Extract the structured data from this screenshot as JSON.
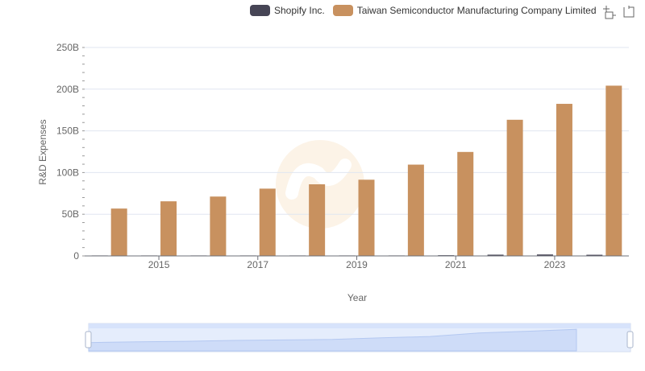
{
  "legend": {
    "items": [
      {
        "label": "Shopify Inc.",
        "color": "#464555"
      },
      {
        "label": "Taiwan Semiconductor Manufacturing Company Limited",
        "color": "#c8915f"
      }
    ]
  },
  "toolbox": {
    "icons": [
      "zoom-icon",
      "restore-icon"
    ]
  },
  "chart_data": {
    "type": "bar",
    "xlabel": "Year",
    "ylabel": "R&D Expenses",
    "ylim": [
      0,
      250000000000
    ],
    "ytick_labels": [
      "0",
      "50B",
      "100B",
      "150B",
      "200B",
      "250B"
    ],
    "categories": [
      "2014",
      "2015",
      "2016",
      "2017",
      "2018",
      "2019",
      "2020",
      "2021",
      "2022",
      "2023",
      "2024"
    ],
    "xtick_labels": [
      "2015",
      "2017",
      "2019",
      "2021",
      "2023"
    ],
    "grid": true,
    "legend_position": "top-right",
    "series": [
      {
        "name": "Shopify Inc.",
        "color": "#464555",
        "values": [
          20000000.0,
          30000000.0,
          80000000.0,
          150000000.0,
          230000000.0,
          330000000.0,
          550000000.0,
          850000000.0,
          1490000000.0,
          1730000000.0,
          1380000000.0
        ]
      },
      {
        "name": "Taiwan Semiconductor Manufacturing Company Limited",
        "color": "#c8915f",
        "values": [
          56800000000.0,
          65500000000.0,
          71200000000.0,
          80700000000.0,
          85900000000.0,
          91400000000.0,
          109500000000.0,
          124700000000.0,
          163300000000.0,
          182400000000.0,
          204200000000.0
        ]
      }
    ]
  }
}
